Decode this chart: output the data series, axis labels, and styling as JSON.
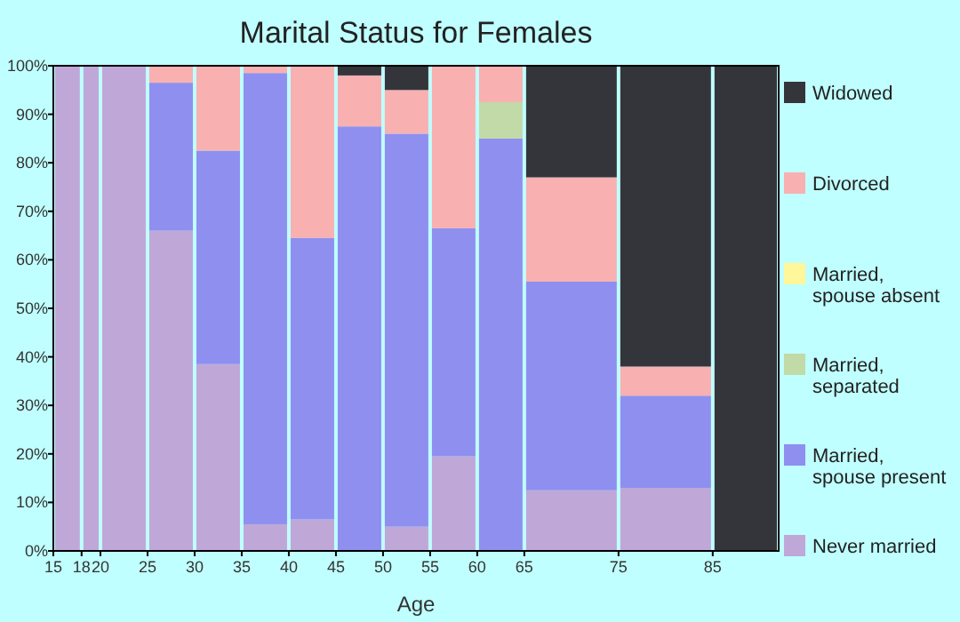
{
  "chart_data": {
    "type": "bar",
    "stacked": true,
    "title": "Marital Status for Females",
    "xlabel": "Age",
    "x": [
      16.5,
      19,
      22.5,
      27.5,
      32.5,
      37.5,
      42.5,
      47.5,
      52.5,
      57.5,
      62.5,
      70,
      80,
      88.5
    ],
    "xlim": [
      15,
      92
    ],
    "xticks": [
      15,
      18,
      20,
      25,
      30,
      35,
      40,
      45,
      50,
      55,
      60,
      65,
      75,
      85
    ],
    "ylim": [
      0,
      100
    ],
    "yticks": [
      {
        "value": 0,
        "label": "0%"
      },
      {
        "value": 10,
        "label": "10%"
      },
      {
        "value": 20,
        "label": "20%"
      },
      {
        "value": 30,
        "label": "30%"
      },
      {
        "value": 40,
        "label": "40%"
      },
      {
        "value": 50,
        "label": "50%"
      },
      {
        "value": 60,
        "label": "60%"
      },
      {
        "value": 70,
        "label": "70%"
      },
      {
        "value": 80,
        "label": "80%"
      },
      {
        "value": 90,
        "label": "90%"
      },
      {
        "value": 100,
        "label": "100%"
      }
    ],
    "legend": "right",
    "series": [
      {
        "name": "Never married",
        "color": "#bfa8d8",
        "values": [
          100,
          100,
          100,
          66,
          38.5,
          5.5,
          6.5,
          0,
          5,
          19.5,
          0,
          12.5,
          13,
          0
        ]
      },
      {
        "name": "Married, spouse present",
        "color": "#8f8ff0",
        "values": [
          0,
          0,
          0,
          30.5,
          44,
          93,
          58,
          87.5,
          81,
          47,
          85,
          43,
          19,
          0
        ]
      },
      {
        "name": "Married, separated",
        "color": "#c2daa8",
        "values": [
          0,
          0,
          0,
          0,
          0,
          0,
          0,
          0,
          0,
          0,
          7.5,
          0,
          0,
          0
        ]
      },
      {
        "name": "Married, spouse absent",
        "color": "#fff799",
        "values": [
          0,
          0,
          0,
          0,
          0,
          0,
          0,
          0,
          0,
          0,
          0,
          0,
          0,
          0
        ]
      },
      {
        "name": "Divorced",
        "color": "#f8b0b0",
        "values": [
          0,
          0,
          0,
          3.5,
          17.5,
          1.5,
          35.5,
          10.5,
          9,
          33.5,
          7.5,
          21.5,
          6,
          0
        ]
      },
      {
        "name": "Widowed",
        "color": "#34353b",
        "values": [
          0,
          0,
          0,
          0,
          0,
          0,
          0,
          2,
          5,
          0,
          0,
          23,
          62,
          100
        ]
      }
    ]
  }
}
